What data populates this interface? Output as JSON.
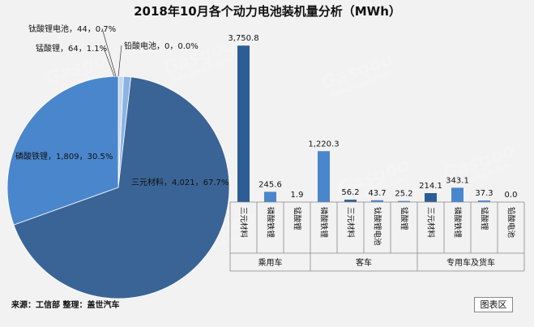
{
  "chart_data": [
    {
      "type": "pie",
      "title": "2018年10月各个动力电池装机量分析（MWh）",
      "slices": [
        {
          "name": "三元材料",
          "value": 4021,
          "pct": "67.7%",
          "label": "三元材料，4,021，67.7%",
          "color": "#3a6496"
        },
        {
          "name": "磷酸铁锂",
          "value": 1809,
          "pct": "30.5%",
          "label": "磷酸铁锂，1,809，30.5%",
          "color": "#4a86cc"
        },
        {
          "name": "锰酸锂",
          "value": 64,
          "pct": "1.1%",
          "label": "锰酸锂，64，1.1%",
          "color": "#8db3e2"
        },
        {
          "name": "钛酸锂电池",
          "value": 44,
          "pct": "0.7%",
          "label": "钛酸锂电池，44，0.7%",
          "color": "#c5d7ee"
        },
        {
          "name": "铅酸电池",
          "value": 0,
          "pct": "0.0%",
          "label": "铅酸电池，0，0.0%",
          "color": "#1f3f66"
        }
      ]
    },
    {
      "type": "bar",
      "ylim": [
        0,
        4000
      ],
      "groups": [
        {
          "name": "乘用车",
          "items": [
            {
              "category": "三元材料",
              "value": 3750.8,
              "label": "3,750.8"
            },
            {
              "category": "磷酸铁锂",
              "value": 245.6,
              "label": "245.6"
            },
            {
              "category": "锰酸锂",
              "value": 1.9,
              "label": "1.9"
            }
          ]
        },
        {
          "name": "客车",
          "items": [
            {
              "category": "磷酸铁锂",
              "value": 1220.3,
              "label": "1,220.3"
            },
            {
              "category": "三元材料",
              "value": 56.2,
              "label": "56.2"
            },
            {
              "category": "钛酸锂电池",
              "value": 43.7,
              "label": "43.7"
            },
            {
              "category": "锰酸锂",
              "value": 25.2,
              "label": "25.2"
            }
          ]
        },
        {
          "name": "专用车及货车",
          "items": [
            {
              "category": "三元材料",
              "value": 214.1,
              "label": "214.1"
            },
            {
              "category": "磷酸铁锂",
              "value": 343.1,
              "label": "343.1"
            },
            {
              "category": "锰酸锂",
              "value": 37.3,
              "label": "37.3"
            },
            {
              "category": "铅酸电池",
              "value": 0.0,
              "label": "0.0"
            }
          ]
        }
      ],
      "bar_colors": {
        "三元材料": "#2d5d96",
        "磷酸铁锂": "#4a86cc",
        "锰酸锂": "#4a86cc",
        "钛酸锂电池": "#4a86cc",
        "铅酸电池": "#4a86cc"
      }
    }
  ],
  "source": "来源：工信部 整理：盖世汽车",
  "legend_button": "图表区",
  "watermark": {
    "brand": "Gasgoo",
    "cn": "盖世汽车",
    "url": "auto.gasgoo.com"
  }
}
